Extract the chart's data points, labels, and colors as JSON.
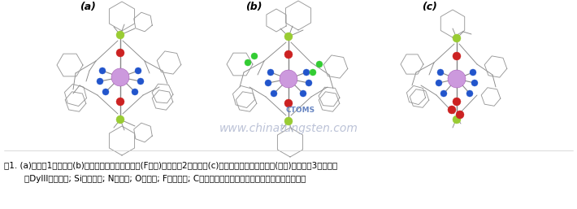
{
  "fig_width": 7.1,
  "fig_height": 2.57,
  "dpi": 100,
  "bg_color": "#ffffff",
  "caption_line1": "图1. (a)配合物1的结构，(b)大环配体中引入吸电子基(F原子)后配合物2的结构，(c)大环配体中引入给电子基(甲基)后配合物3的结构；",
  "caption_line2": "（DyIII，淡紫色; Si，黄绿色; N，蓝色; O，红色; F，亮绿色; C，灰色）为清楚起见，省略了氢原子和阴离子。",
  "label_a": "(a)",
  "label_b": "(b)",
  "label_c": "(c)",
  "caption_fontsize": 7.5,
  "label_fontsize": 9,
  "watermark_text": "www.chinatungsten.com",
  "watermark_color": "#b0b8d0",
  "ctoms_text": "CTOMS",
  "ctoms_color": "#5577bb",
  "dy_color": "#cc99dd",
  "si_color": "#99cc33",
  "n_color": "#2255cc",
  "o_color": "#cc2222",
  "f_color": "#33cc33",
  "bond_color": "#888888",
  "ring_color": "#999999"
}
